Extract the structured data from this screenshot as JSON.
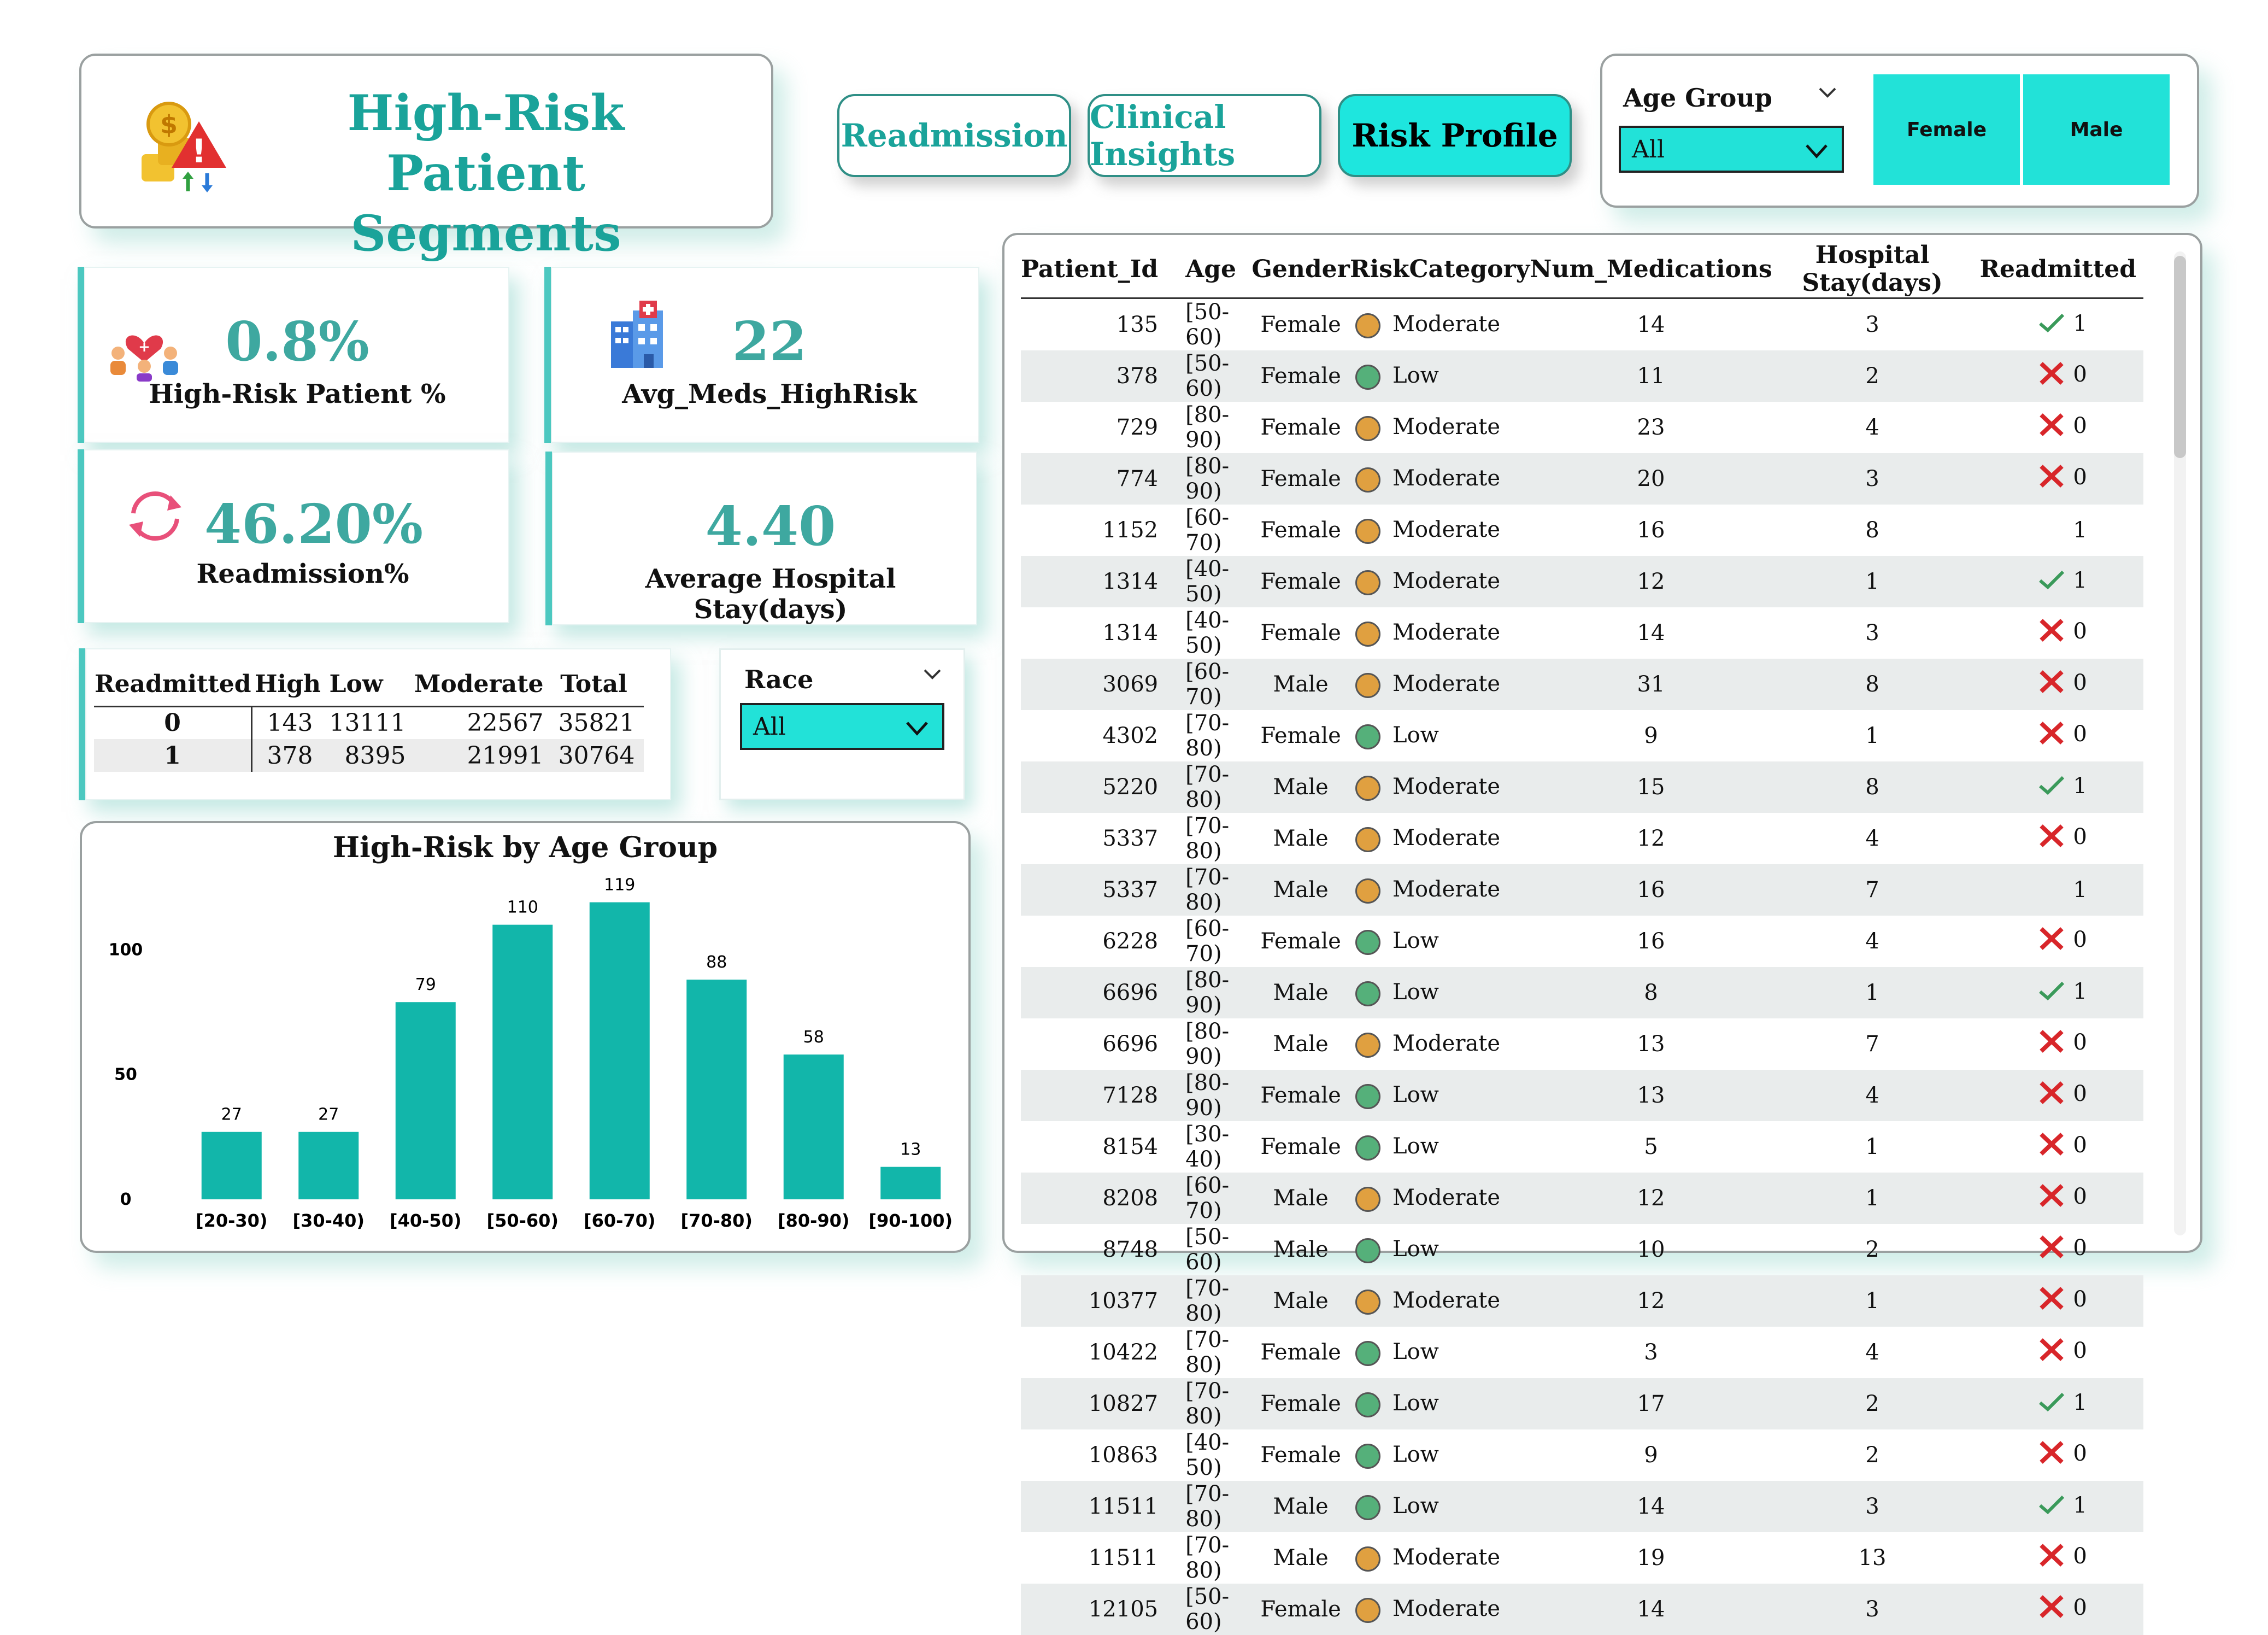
{
  "header": {
    "title_line1": "High-Risk Patient",
    "title_line2": "Segments"
  },
  "nav": [
    {
      "label": "Readmission",
      "active": false
    },
    {
      "label": "Clinical Insights",
      "active": false
    },
    {
      "label": "Risk Profile",
      "active": true
    }
  ],
  "filters": {
    "age_group": {
      "label": "Age Group",
      "value": "All"
    },
    "gender_buttons": [
      "Female",
      "Male"
    ],
    "race": {
      "label": "Race",
      "value": "All"
    }
  },
  "kpis": {
    "high_risk_pct": {
      "value": "0.8%",
      "label": "High-Risk Patient %"
    },
    "avg_meds": {
      "value": "22",
      "label": "Avg_Meds_HighRisk"
    },
    "readmission_pct": {
      "value": "46.20%",
      "label": "Readmission%"
    },
    "avg_stay": {
      "value": "4.40",
      "label": "Average Hospital Stay(days)"
    }
  },
  "matrix": {
    "headers": [
      "Readmitted",
      "High",
      "Low",
      "Moderate",
      "Total"
    ],
    "rows": [
      [
        "0",
        "143",
        "13111",
        "22567",
        "35821"
      ],
      [
        "1",
        "378",
        "8395",
        "21991",
        "30764"
      ]
    ]
  },
  "chart_data": {
    "type": "bar",
    "title": "High-Risk by Age Group",
    "categories": [
      "[20-30)",
      "[30-40)",
      "[40-50)",
      "[50-60)",
      "[60-70)",
      "[70-80)",
      "[80-90)",
      "[90-100)"
    ],
    "values": [
      27,
      27,
      79,
      110,
      119,
      88,
      58,
      13
    ],
    "ylim": [
      0,
      120
    ],
    "yticks": [
      "0",
      "50",
      "100"
    ],
    "grid": false,
    "bar_color": "#12b6aa"
  },
  "patients": {
    "headers": [
      "Patient_Id",
      "Age",
      "Gender",
      "RiskCategory",
      "Num_Medications",
      "Hospital Stay(days)",
      "Readmitted"
    ],
    "rows": [
      [
        "135",
        "[50-60)",
        "Female",
        "Moderate",
        "14",
        "3",
        "1"
      ],
      [
        "378",
        "[50-60)",
        "Female",
        "Low",
        "11",
        "2",
        "0"
      ],
      [
        "729",
        "[80-90)",
        "Female",
        "Moderate",
        "23",
        "4",
        "0"
      ],
      [
        "774",
        "[80-90)",
        "Female",
        "Moderate",
        "20",
        "3",
        "0"
      ],
      [
        "1152",
        "[60-70)",
        "Female",
        "Moderate",
        "16",
        "8",
        "1"
      ],
      [
        "1314",
        "[40-50)",
        "Female",
        "Moderate",
        "12",
        "1",
        "1"
      ],
      [
        "1314",
        "[40-50)",
        "Female",
        "Moderate",
        "14",
        "3",
        "0"
      ],
      [
        "3069",
        "[60-70)",
        "Male",
        "Moderate",
        "31",
        "8",
        "0"
      ],
      [
        "4302",
        "[70-80)",
        "Female",
        "Low",
        "9",
        "1",
        "0"
      ],
      [
        "5220",
        "[70-80)",
        "Male",
        "Moderate",
        "15",
        "8",
        "1"
      ],
      [
        "5337",
        "[70-80)",
        "Male",
        "Moderate",
        "12",
        "4",
        "0"
      ],
      [
        "5337",
        "[70-80)",
        "Male",
        "Moderate",
        "16",
        "7",
        "1"
      ],
      [
        "6228",
        "[60-70)",
        "Female",
        "Low",
        "16",
        "4",
        "0"
      ],
      [
        "6696",
        "[80-90)",
        "Male",
        "Low",
        "8",
        "1",
        "1"
      ],
      [
        "6696",
        "[80-90)",
        "Male",
        "Moderate",
        "13",
        "7",
        "0"
      ],
      [
        "7128",
        "[80-90)",
        "Female",
        "Low",
        "13",
        "4",
        "0"
      ],
      [
        "8154",
        "[30-40)",
        "Female",
        "Low",
        "5",
        "1",
        "0"
      ],
      [
        "8208",
        "[60-70)",
        "Male",
        "Moderate",
        "12",
        "1",
        "0"
      ],
      [
        "8748",
        "[50-60)",
        "Male",
        "Low",
        "10",
        "2",
        "0"
      ],
      [
        "10377",
        "[70-80)",
        "Male",
        "Moderate",
        "12",
        "1",
        "0"
      ],
      [
        "10422",
        "[70-80)",
        "Female",
        "Low",
        "3",
        "4",
        "0"
      ],
      [
        "10827",
        "[70-80)",
        "Female",
        "Low",
        "17",
        "2",
        "1"
      ],
      [
        "10863",
        "[40-50)",
        "Female",
        "Low",
        "9",
        "2",
        "0"
      ],
      [
        "11511",
        "[70-80)",
        "Male",
        "Low",
        "14",
        "3",
        "1"
      ],
      [
        "11511",
        "[70-80)",
        "Male",
        "Moderate",
        "19",
        "13",
        "0"
      ],
      [
        "12105",
        "[50-60)",
        "Female",
        "Moderate",
        "14",
        "3",
        "0"
      ]
    ],
    "readmit_icons": [
      "check",
      "cross",
      "cross",
      "cross",
      "none",
      "check",
      "cross",
      "cross",
      "cross",
      "check",
      "cross",
      "none",
      "cross",
      "check",
      "cross",
      "cross",
      "cross",
      "cross",
      "cross",
      "cross",
      "cross",
      "check",
      "cross",
      "check",
      "cross",
      "cross"
    ]
  },
  "colors": {
    "accent": "#1aa39a",
    "teal": "#22e2d8",
    "moderate": "#e0a040",
    "low": "#55b07a",
    "check": "#3a9a5a",
    "cross": "#d8262a"
  }
}
